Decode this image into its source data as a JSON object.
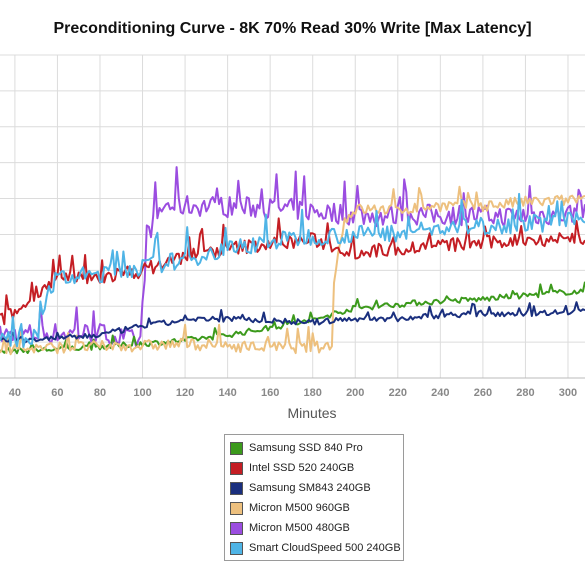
{
  "chart_data": {
    "type": "line",
    "title": "Preconditioning Curve - 8K 70% Read 30% Write [Max Latency]",
    "xlabel": "Minutes",
    "ylabel": "",
    "xlim": [
      33,
      308
    ],
    "ylim": [
      0,
      9
    ],
    "x_ticks": [
      40,
      60,
      80,
      100,
      120,
      140,
      160,
      180,
      200,
      220,
      240,
      260,
      280,
      300
    ],
    "x_tick_labels": [
      "40",
      "60",
      "80",
      "100",
      "120",
      "140",
      "160",
      "180",
      "200",
      "220",
      "240",
      "260",
      "280",
      "300"
    ],
    "y_grid": [
      1,
      2,
      3,
      4,
      5,
      6,
      7,
      8,
      9
    ],
    "grid": true,
    "legend_position": "bottom-center",
    "series": [
      {
        "name": "Samsung SSD 840 Pro",
        "color": "#3c9a1c",
        "x": [
          33,
          60,
          100,
          120,
          140,
          160,
          180,
          190,
          200,
          230,
          260,
          280,
          300,
          308
        ],
        "y": [
          0.75,
          0.8,
          0.95,
          1.05,
          1.2,
          1.4,
          1.6,
          1.8,
          1.95,
          2.1,
          2.2,
          2.3,
          2.4,
          2.4
        ]
      },
      {
        "name": "Intel SSD 520 240GB",
        "color": "#c41e24",
        "x": [
          33,
          45,
          50,
          55,
          60,
          80,
          100,
          120,
          140,
          160,
          180,
          200,
          220,
          240,
          260,
          280,
          300,
          308
        ],
        "y": [
          1.6,
          2.0,
          2.4,
          2.6,
          2.75,
          2.8,
          3.0,
          3.4,
          3.6,
          3.75,
          3.85,
          3.5,
          3.6,
          3.7,
          3.75,
          3.85,
          3.9,
          3.9
        ]
      },
      {
        "name": "Samsung SM843 240GB",
        "color": "#1a2f7e",
        "x": [
          33,
          60,
          80,
          100,
          120,
          140,
          160,
          180,
          200,
          220,
          240,
          260,
          280,
          300,
          308
        ],
        "y": [
          1.05,
          1.1,
          1.2,
          1.45,
          1.6,
          1.65,
          1.6,
          1.55,
          1.65,
          1.65,
          1.75,
          1.8,
          1.8,
          1.85,
          1.9
        ]
      },
      {
        "name": "Micron M500 960GB",
        "color": "#edc07e",
        "x": [
          33,
          60,
          100,
          120,
          140,
          160,
          180,
          189,
          190,
          195,
          200,
          220,
          240,
          260,
          280,
          300,
          308
        ],
        "y": [
          0.8,
          0.85,
          0.9,
          0.95,
          0.9,
          0.85,
          0.85,
          0.9,
          2.8,
          4.4,
          4.7,
          4.7,
          4.8,
          4.8,
          4.9,
          4.95,
          5.0
        ]
      },
      {
        "name": "Micron M500 480GB",
        "color": "#9b4de0",
        "x": [
          33,
          60,
          80,
          99,
          102,
          110,
          130,
          150,
          170,
          190,
          210,
          230,
          250,
          270,
          290,
          308
        ],
        "y": [
          1.2,
          1.25,
          1.25,
          1.0,
          4.0,
          4.8,
          4.8,
          4.75,
          4.7,
          4.6,
          4.5,
          4.55,
          4.55,
          4.5,
          4.55,
          4.6
        ]
      },
      {
        "name": "Smart CloudSpeed 500 240GB",
        "color": "#4fb4e6",
        "x": [
          33,
          50,
          55,
          60,
          80,
          100,
          120,
          140,
          160,
          180,
          200,
          220,
          240,
          260,
          280,
          300,
          308
        ],
        "y": [
          1.05,
          1.1,
          2.4,
          2.75,
          2.9,
          3.1,
          3.3,
          3.6,
          3.8,
          3.95,
          4.0,
          4.05,
          4.15,
          4.25,
          4.3,
          4.35,
          4.4
        ]
      }
    ]
  }
}
